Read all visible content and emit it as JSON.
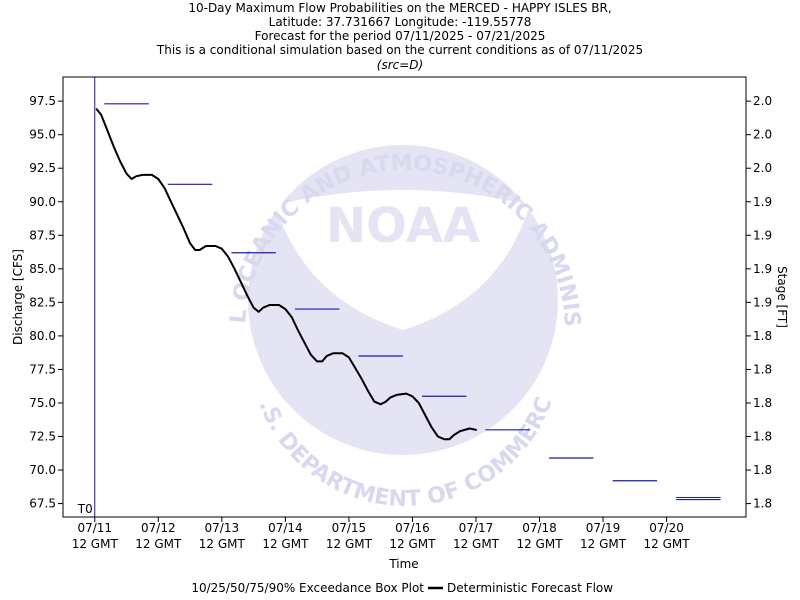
{
  "chart_data": {
    "type": "line",
    "title_lines": [
      "10-Day Maximum Flow Probabilities on the MERCED - HAPPY ISLES BR,",
      "Latitude: 37.731667 Longitude: -119.55778",
      "Forecast for the period 07/11/2025 - 07/21/2025",
      "This is a conditional simulation based on the current conditions as of 07/11/2025"
    ],
    "subtitle": "(src=D)",
    "xlabel": "Time",
    "ylabel": "Discharge [CFS]",
    "y2label": "Stage [FT]",
    "x_ticks": [
      {
        "day": 0,
        "line1": "07/11",
        "line2": "12 GMT"
      },
      {
        "day": 1,
        "line1": "07/12",
        "line2": "12 GMT"
      },
      {
        "day": 2,
        "line1": "07/13",
        "line2": "12 GMT"
      },
      {
        "day": 3,
        "line1": "07/14",
        "line2": "12 GMT"
      },
      {
        "day": 4,
        "line1": "07/15",
        "line2": "12 GMT"
      },
      {
        "day": 5,
        "line1": "07/16",
        "line2": "12 GMT"
      },
      {
        "day": 6,
        "line1": "07/17",
        "line2": "12 GMT"
      },
      {
        "day": 7,
        "line1": "07/18",
        "line2": "12 GMT"
      },
      {
        "day": 8,
        "line1": "07/19",
        "line2": "12 GMT"
      },
      {
        "day": 9,
        "line1": "07/20",
        "line2": "12 GMT"
      }
    ],
    "xlim": [
      -0.5,
      10.25
    ],
    "ylim": [
      66.5,
      99.3
    ],
    "y_ticks": [
      67.5,
      70.0,
      72.5,
      75.0,
      77.5,
      80.0,
      82.5,
      85.0,
      87.5,
      90.0,
      92.5,
      95.0,
      97.5
    ],
    "y_tick_labels": [
      "67.5",
      "70.0",
      "72.5",
      "75.0",
      "77.5",
      "80.0",
      "82.5",
      "85.0",
      "87.5",
      "90.0",
      "92.5",
      "95.0",
      "97.5"
    ],
    "y2_tick_labels": [
      "1.8",
      "1.8",
      "1.8",
      "1.8",
      "1.8",
      "1.8",
      "1.9",
      "1.9",
      "1.9",
      "1.9",
      "2.0",
      "2.0",
      "2.0"
    ],
    "t0_label": "T0",
    "t0_day": 0,
    "deterministic_flow": {
      "name": "Deterministic Forecast Flow",
      "color": "#000000",
      "points": [
        [
          0.03,
          96.9
        ],
        [
          0.1,
          96.5
        ],
        [
          0.2,
          95.3
        ],
        [
          0.3,
          94.1
        ],
        [
          0.4,
          93.0
        ],
        [
          0.5,
          92.1
        ],
        [
          0.58,
          91.7
        ],
        [
          0.65,
          91.9
        ],
        [
          0.75,
          92.0
        ],
        [
          0.9,
          92.0
        ],
        [
          1.0,
          91.7
        ],
        [
          1.1,
          91.0
        ],
        [
          1.2,
          90.0
        ],
        [
          1.3,
          89.0
        ],
        [
          1.4,
          88.0
        ],
        [
          1.5,
          86.9
        ],
        [
          1.58,
          86.4
        ],
        [
          1.65,
          86.4
        ],
        [
          1.75,
          86.7
        ],
        [
          1.9,
          86.7
        ],
        [
          2.0,
          86.5
        ],
        [
          2.1,
          85.9
        ],
        [
          2.2,
          85.0
        ],
        [
          2.3,
          84.0
        ],
        [
          2.4,
          83.0
        ],
        [
          2.5,
          82.1
        ],
        [
          2.58,
          81.8
        ],
        [
          2.65,
          82.1
        ],
        [
          2.75,
          82.3
        ],
        [
          2.9,
          82.3
        ],
        [
          3.0,
          82.0
        ],
        [
          3.1,
          81.4
        ],
        [
          3.2,
          80.4
        ],
        [
          3.3,
          79.5
        ],
        [
          3.4,
          78.6
        ],
        [
          3.5,
          78.1
        ],
        [
          3.58,
          78.1
        ],
        [
          3.65,
          78.5
        ],
        [
          3.75,
          78.7
        ],
        [
          3.9,
          78.7
        ],
        [
          4.0,
          78.4
        ],
        [
          4.1,
          77.6
        ],
        [
          4.2,
          76.8
        ],
        [
          4.3,
          75.9
        ],
        [
          4.4,
          75.1
        ],
        [
          4.5,
          74.9
        ],
        [
          4.58,
          75.1
        ],
        [
          4.65,
          75.4
        ],
        [
          4.75,
          75.6
        ],
        [
          4.9,
          75.7
        ],
        [
          5.0,
          75.5
        ],
        [
          5.1,
          75.0
        ],
        [
          5.2,
          74.1
        ],
        [
          5.3,
          73.2
        ],
        [
          5.4,
          72.5
        ],
        [
          5.5,
          72.3
        ],
        [
          5.58,
          72.3
        ],
        [
          5.65,
          72.6
        ],
        [
          5.75,
          72.9
        ],
        [
          5.9,
          73.1
        ],
        [
          6.0,
          73.0
        ]
      ]
    },
    "boxplot": {
      "name": "10/25/50/75/90% Exceedance Box Plot",
      "color": "#1a1ab8",
      "segments": [
        {
          "x_start": 0.15,
          "x_end": 0.85,
          "value": 97.3
        },
        {
          "x_start": 1.15,
          "x_end": 1.85,
          "value": 91.3
        },
        {
          "x_start": 2.15,
          "x_end": 2.85,
          "value": 86.2
        },
        {
          "x_start": 3.15,
          "x_end": 3.85,
          "value": 82.0
        },
        {
          "x_start": 4.15,
          "x_end": 4.85,
          "value": 78.5
        },
        {
          "x_start": 5.15,
          "x_end": 5.85,
          "value": 75.5
        },
        {
          "x_start": 6.15,
          "x_end": 6.85,
          "value": 73.0
        },
        {
          "x_start": 7.15,
          "x_end": 7.85,
          "value": 70.9
        },
        {
          "x_start": 8.15,
          "x_end": 8.85,
          "value": 69.2
        },
        {
          "x_start": 9.15,
          "x_end": 9.85,
          "value": 67.8
        }
      ]
    },
    "legend_position": "bottom",
    "grid": false,
    "watermark": {
      "center_text": "NOAA",
      "ring_text_top": "NATIONAL OCEANIC AND ATMOSPHERIC ADMINISTRATION",
      "ring_text_bottom": "U.S. DEPARTMENT OF COMMERCE",
      "color": "#dcdcf0"
    },
    "colors": {
      "axis": "#000000",
      "t0_line": "#1a1ab8",
      "plot_background": "#ffffff"
    }
  }
}
